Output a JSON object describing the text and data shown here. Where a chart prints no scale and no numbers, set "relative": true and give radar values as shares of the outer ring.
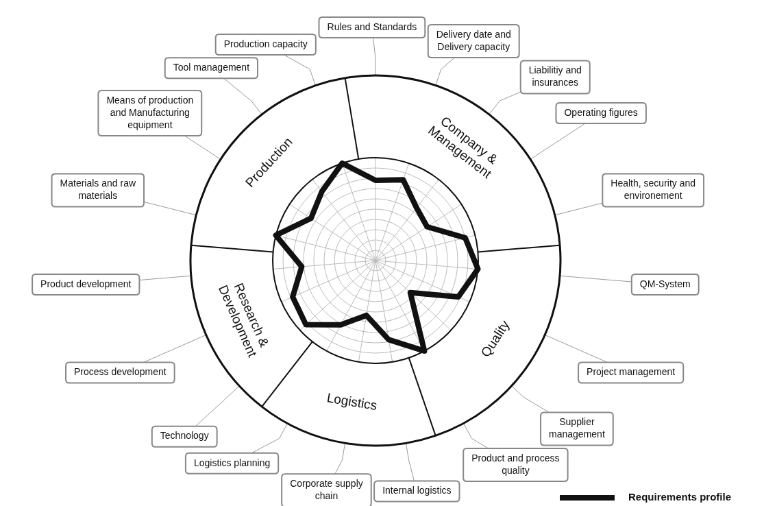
{
  "chart_data": {
    "type": "radar",
    "relative": true,
    "grid": true,
    "marker": "none",
    "line_style": "solid",
    "legend": "bottom right",
    "categories": [
      "Rules and Standards",
      "Delivery date and Delivery capacity",
      "Liabilitiy and insurances",
      "Operating figures",
      "Health, security and environement",
      "QM-System",
      "Project  management",
      "Supplier management",
      "Product and process quality",
      "Internal logistics",
      "Corporate supply chain",
      "Logistics planning",
      "Technology",
      "Process  development",
      "Product  development",
      "Materials and raw materials",
      "Means of production and Manufacturing  equipment",
      "Tool management",
      "Production capacity"
    ],
    "series": [
      {
        "name": "Requirements profile",
        "color": "#111111",
        "values": [
          0.78,
          0.83,
          0.65,
          0.6,
          0.9,
          1.0,
          0.88,
          0.46,
          1.0,
          0.78,
          0.54,
          0.71,
          0.92,
          0.88,
          0.72,
          1.0,
          0.75,
          0.85,
          1.0
        ]
      }
    ],
    "annotations": [
      "Company & Management",
      "Quality",
      "Logistics",
      "Research & Development",
      "Production"
    ]
  }
}
